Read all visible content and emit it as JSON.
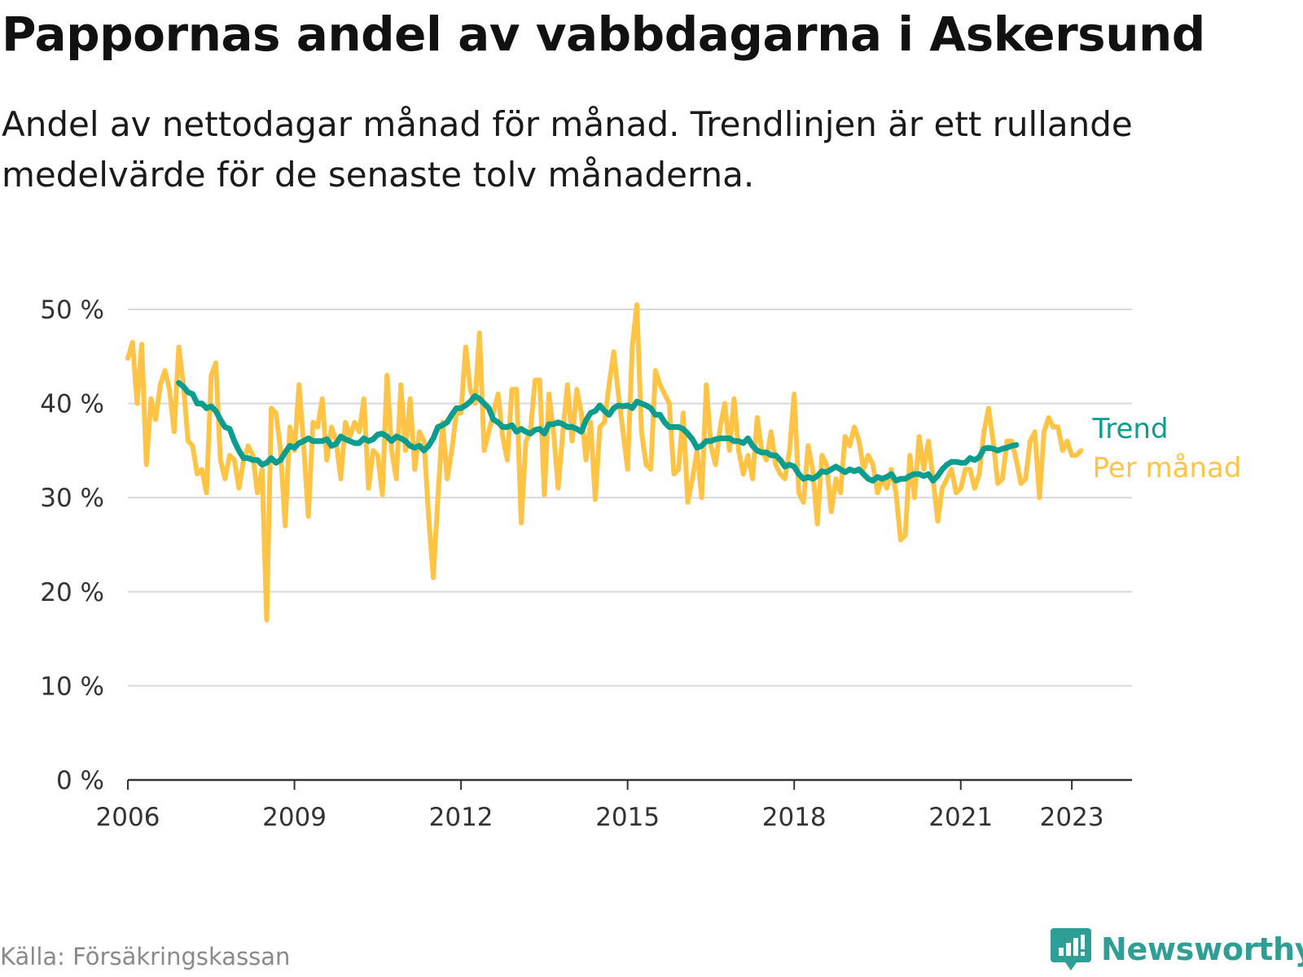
{
  "title": "Pappornas andel av vabbdagarna i Askersund",
  "subtitle": "Andel av nettodagar månad för månad. Trendlinjen är ett rullande medelvärde för de senaste tolv månaderna.",
  "source": "Källa: Försäkringskassan",
  "brand": {
    "name": "Newsworthy",
    "icon": "newsworthy-logo-icon",
    "color": "#2f9e95"
  },
  "chart_data": {
    "type": "line",
    "xlim": [
      "2006-01",
      "2024-02"
    ],
    "ylim": [
      0,
      50
    ],
    "yticks": [
      0,
      10,
      20,
      30,
      40,
      50
    ],
    "ytick_labels": [
      "0 %",
      "10 %",
      "20 %",
      "30 %",
      "40 %",
      "50 %"
    ],
    "xticks": [
      "2006-01",
      "2009-01",
      "2012-01",
      "2015-01",
      "2018-01",
      "2021-01",
      "2023-01"
    ],
    "xtick_labels": [
      "2006",
      "2009",
      "2012",
      "2015",
      "2018",
      "2021",
      "2023"
    ],
    "grid": true,
    "legend": "right-end labels",
    "series": [
      {
        "name": "Per månad",
        "color": "#ffc445",
        "start": "2006-01",
        "values": [
          44.8,
          46.5,
          40.0,
          46.3,
          33.5,
          40.5,
          38.3,
          42.0,
          43.5,
          41.5,
          37.0,
          46.0,
          42.0,
          36.0,
          35.5,
          32.5,
          33.0,
          30.5,
          43.0,
          44.3,
          34.0,
          32.0,
          34.5,
          34.0,
          31.0,
          34.0,
          35.5,
          34.5,
          30.5,
          33.0,
          17.0,
          39.5,
          39.0,
          35.0,
          27.0,
          37.5,
          35.0,
          42.0,
          35.5,
          28.0,
          38.0,
          37.5,
          40.5,
          34.0,
          37.5,
          36.0,
          32.0,
          38.0,
          36.5,
          38.0,
          37.0,
          40.5,
          31.0,
          35.0,
          34.5,
          30.3,
          43.0,
          35.0,
          32.0,
          42.0,
          35.0,
          40.5,
          33.0,
          37.0,
          36.0,
          28.0,
          21.5,
          30.0,
          38.0,
          32.0,
          35.0,
          39.0,
          39.0,
          46.0,
          41.5,
          40.0,
          47.5,
          35.0,
          37.0,
          39.0,
          41.0,
          36.5,
          34.0,
          41.5,
          41.5,
          27.3,
          36.0,
          37.0,
          42.5,
          42.5,
          30.3,
          41.0,
          37.0,
          31.0,
          37.0,
          42.0,
          36.0,
          41.5,
          39.0,
          34.0,
          38.0,
          29.8,
          37.5,
          38.0,
          42.0,
          45.5,
          41.0,
          37.0,
          33.0,
          46.0,
          50.5,
          37.0,
          33.5,
          33.0,
          43.5,
          42.0,
          41.0,
          40.0,
          32.5,
          33.0,
          39.0,
          29.5,
          32.0,
          35.0,
          30.0,
          42.0,
          35.5,
          33.5,
          37.5,
          40.0,
          35.0,
          40.5,
          35.0,
          32.5,
          34.5,
          32.0,
          38.5,
          35.0,
          34.0,
          37.0,
          33.5,
          32.5,
          32.0,
          35.0,
          41.0,
          30.5,
          29.5,
          35.5,
          33.0,
          27.2,
          34.5,
          33.5,
          28.5,
          32.0,
          30.5,
          36.5,
          35.5,
          37.5,
          36.0,
          33.0,
          34.5,
          33.5,
          30.5,
          32.0,
          31.0,
          33.0,
          30.5,
          25.5,
          26.0,
          34.5,
          30.0,
          36.5,
          33.0,
          36.0,
          32.0,
          27.5,
          31.0,
          32.0,
          33.0,
          30.5,
          31.0,
          33.0,
          33.0,
          31.0,
          32.5,
          37.0,
          39.5,
          36.0,
          31.5,
          32.0,
          36.0,
          36.0,
          34.0,
          31.5,
          32.0,
          36.0,
          37.0,
          30.0,
          37.0,
          38.5,
          37.5,
          37.5,
          35.0,
          36.0,
          34.5,
          34.5,
          35.0
        ]
      },
      {
        "name": "Trend",
        "color": "#0d9d8f",
        "start": "2006-12",
        "values": [
          42.2,
          41.8,
          41.2,
          41.0,
          40.0,
          40.0,
          39.5,
          39.7,
          39.2,
          38.3,
          37.5,
          37.3,
          36.0,
          35.0,
          34.2,
          34.2,
          34.0,
          34.0,
          33.5,
          33.7,
          34.2,
          33.7,
          34.0,
          34.8,
          35.5,
          35.3,
          35.8,
          36.0,
          36.3,
          36.0,
          36.0,
          36.0,
          36.2,
          35.5,
          35.7,
          36.5,
          36.2,
          36.0,
          35.8,
          35.8,
          36.3,
          36.0,
          36.2,
          36.7,
          36.8,
          36.5,
          36.0,
          36.5,
          36.3,
          36.0,
          35.5,
          35.3,
          35.5,
          35.0,
          35.5,
          36.3,
          37.5,
          37.7,
          38.0,
          38.8,
          39.5,
          39.5,
          39.8,
          40.2,
          40.8,
          40.5,
          40.0,
          39.5,
          38.3,
          38.0,
          37.5,
          37.5,
          37.7,
          37.0,
          37.3,
          37.0,
          36.8,
          37.2,
          37.3,
          36.8,
          37.8,
          37.8,
          38.0,
          37.8,
          37.5,
          37.5,
          37.3,
          37.0,
          38.2,
          39.0,
          39.2,
          39.8,
          39.2,
          38.8,
          39.5,
          39.8,
          39.7,
          39.8,
          39.5,
          40.2,
          40.0,
          39.8,
          39.5,
          38.8,
          38.8,
          38.0,
          37.5,
          37.5,
          37.5,
          37.3,
          36.8,
          36.2,
          35.3,
          35.5,
          36.0,
          36.0,
          36.2,
          36.3,
          36.3,
          36.3,
          36.0,
          36.0,
          35.8,
          36.3,
          35.5,
          35.0,
          34.8,
          34.8,
          34.5,
          34.5,
          34.0,
          33.3,
          33.5,
          33.3,
          32.5,
          32.0,
          32.2,
          32.0,
          32.3,
          32.8,
          32.7,
          33.0,
          33.3,
          33.0,
          32.7,
          33.0,
          32.8,
          33.0,
          32.5,
          32.0,
          31.8,
          32.2,
          32.0,
          32.2,
          32.5,
          31.8,
          32.0,
          32.0,
          32.3,
          32.5,
          32.5,
          32.3,
          32.5,
          31.8,
          32.3,
          33.0,
          33.5,
          33.8,
          33.8,
          33.7,
          33.7,
          34.2,
          34.0,
          34.3,
          35.2,
          35.3,
          35.2,
          35.0,
          35.2,
          35.3,
          35.5,
          35.6
        ]
      }
    ]
  }
}
